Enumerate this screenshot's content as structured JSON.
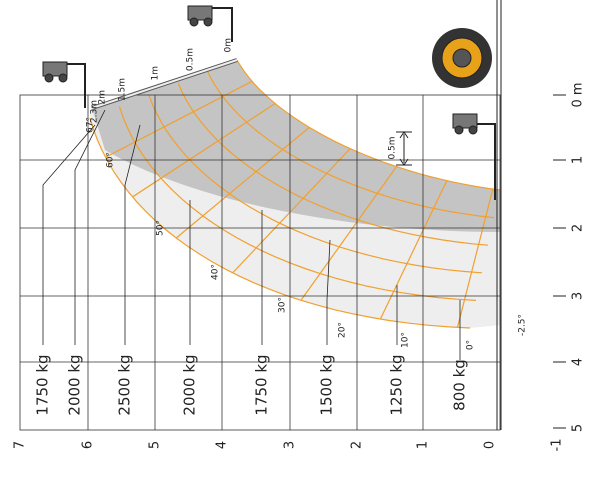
{
  "x_axis": {
    "labels": [
      "7",
      "6",
      "5",
      "4",
      "3",
      "2",
      "1",
      "0",
      "-1"
    ]
  },
  "y_axis": {
    "labels": [
      "0 m",
      "1",
      "2",
      "3",
      "4",
      "5"
    ]
  },
  "loads": [
    "1750 kg",
    "2000 kg",
    "2500 kg",
    "2000 kg",
    "1750 kg",
    "1500 kg",
    "1250 kg",
    "800 kg"
  ],
  "angles": [
    "67°",
    "60°",
    "50°",
    "40°",
    "30°",
    "20°",
    "10°",
    "0°",
    "-2.5°"
  ],
  "extensions": [
    "0m",
    "0.5m",
    "1m",
    "1.5m",
    "2m",
    "2.3m"
  ],
  "ground_extension": "0.5m"
}
